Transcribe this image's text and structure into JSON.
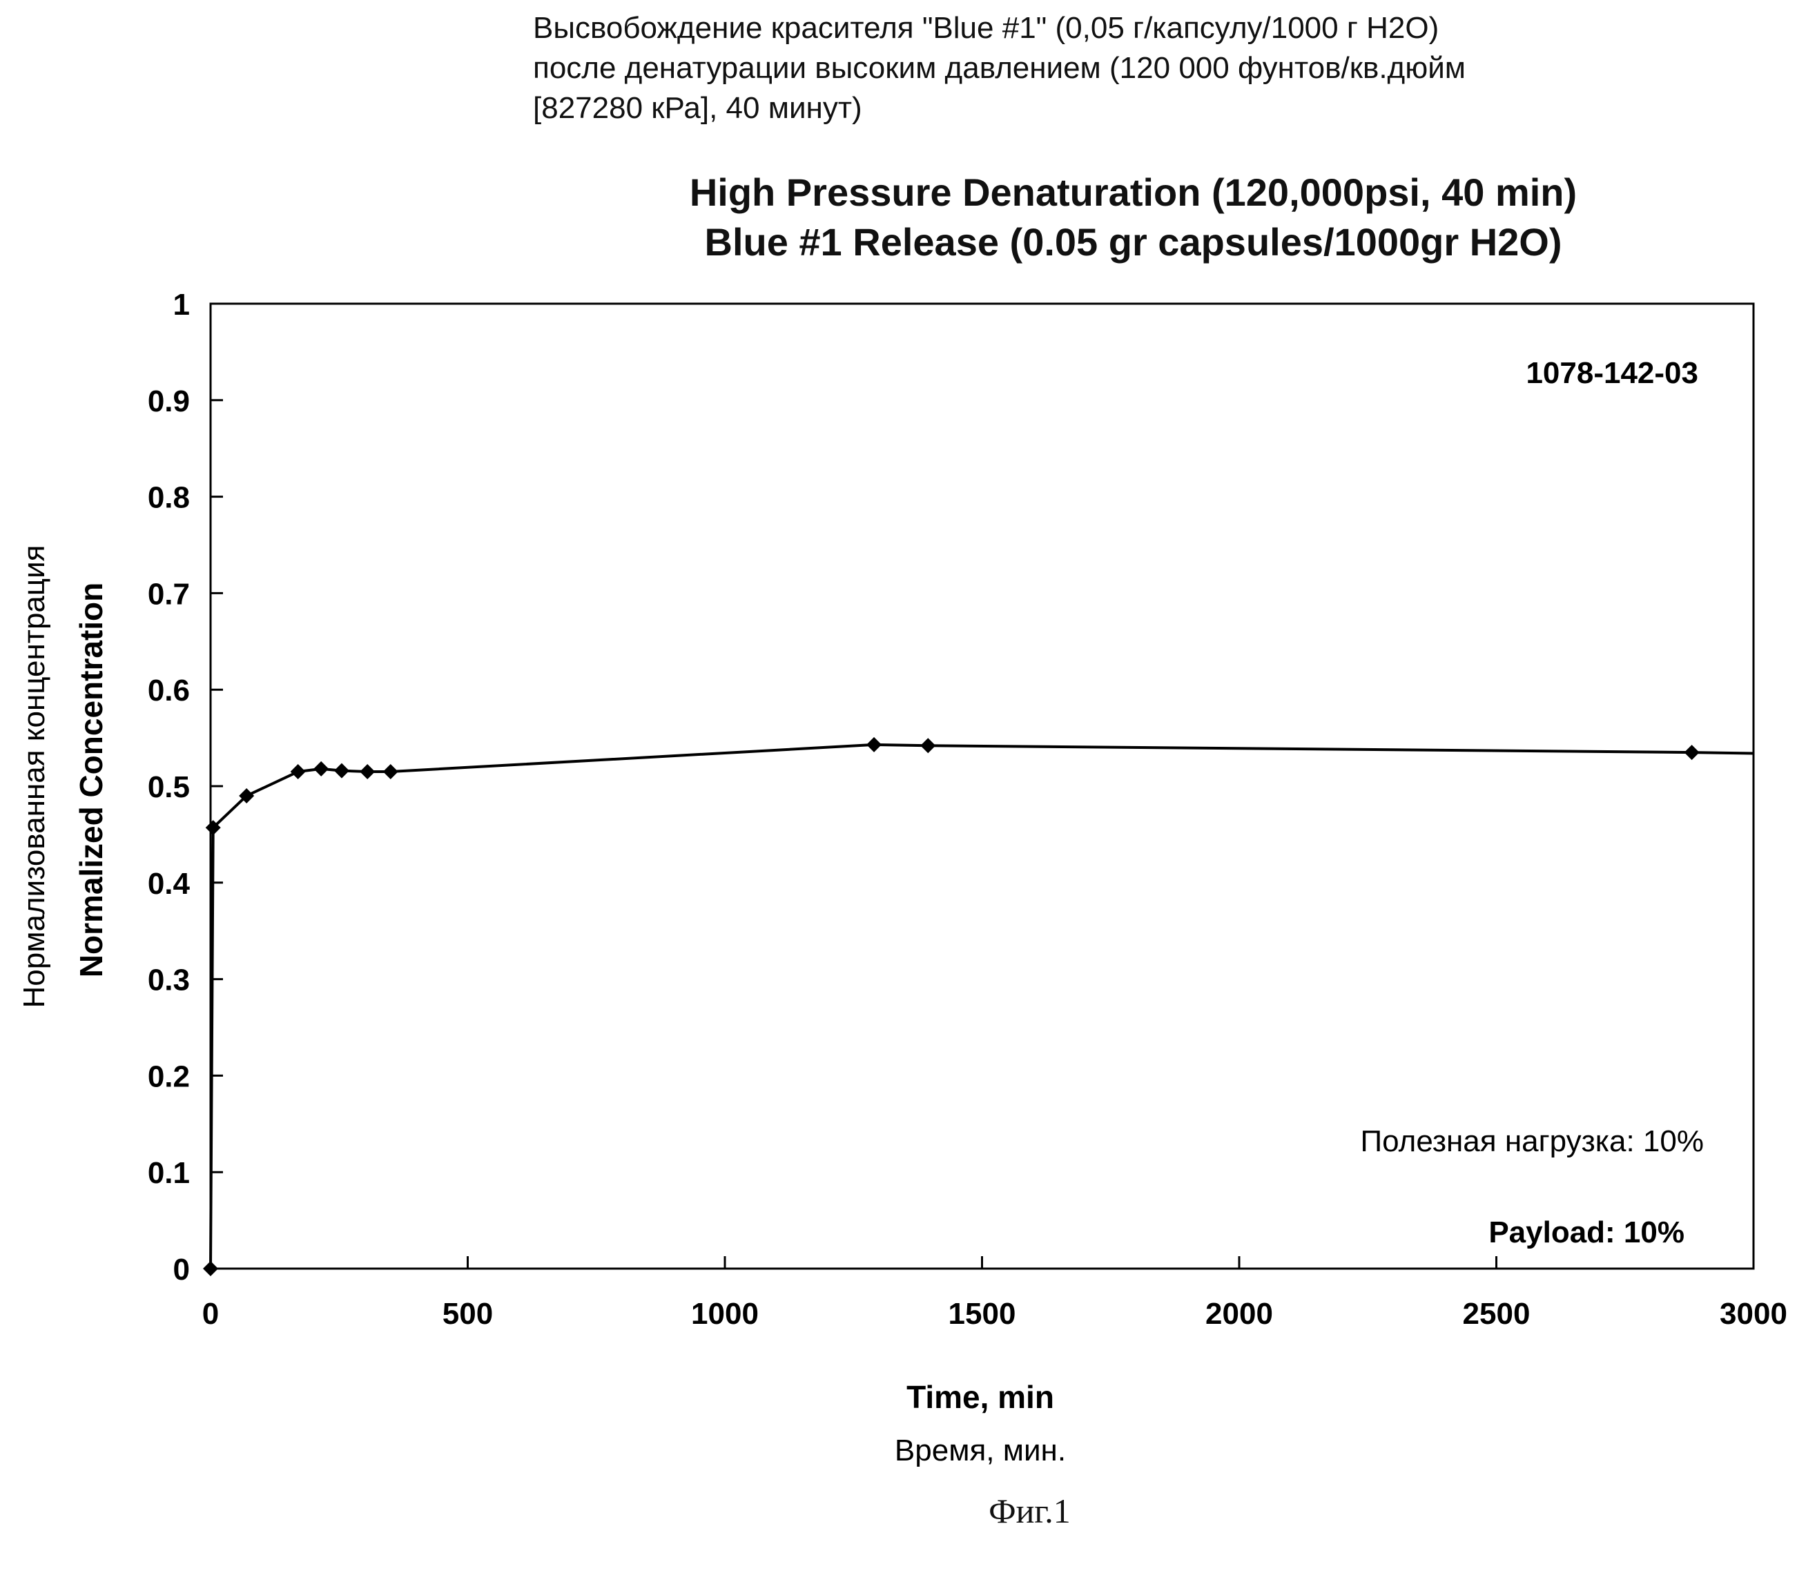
{
  "caption_ru": [
    "Высвобождение красителя \"Blue #1\" (0,05 г/капсулу/1000 г H2O)",
    "после денатурации высоким давлением (120 000 фунтов/кв.дюйм",
    "[827280 кРа], 40 минут)"
  ],
  "figure_label": "Фиг.1",
  "chart_data": {
    "type": "line",
    "title": [
      "High Pressure Denaturation (120,000psi, 40 min)",
      "Blue #1 Release (0.05 gr capsules/1000gr H2O)"
    ],
    "xlabel": "Time, min",
    "xlabel_ru": "Время, мин.",
    "ylabel": "Normalized Concentration",
    "ylabel_ru": "Нормализованная концентрация",
    "xlim": [
      0,
      3000
    ],
    "ylim": [
      0,
      1
    ],
    "x_ticks": [
      "0",
      "500",
      "1000",
      "1500",
      "2000",
      "2500",
      "3000"
    ],
    "y_ticks": [
      "0",
      "0.1",
      "0.2",
      "0.3",
      "0.4",
      "0.5",
      "0.6",
      "0.7",
      "0.8",
      "0.9",
      "1"
    ],
    "grid": false,
    "annotations": {
      "sample_id": "1078-142-03",
      "payload_ru": "Полезная нагрузка: 10%",
      "payload_en": "Payload: 10%"
    },
    "series": [
      {
        "x": [
          0,
          5,
          70,
          170,
          215,
          255,
          305,
          350,
          1290,
          1395,
          2880,
          3000
        ],
        "y": [
          0,
          0.457,
          0.49,
          0.515,
          0.518,
          0.516,
          0.515,
          0.515,
          0.543,
          0.542,
          0.535,
          0.534
        ],
        "marker": [
          true,
          true,
          true,
          true,
          true,
          true,
          true,
          true,
          true,
          true,
          true,
          false
        ]
      }
    ],
    "colors": {
      "line": "#000000",
      "marker": "#000000"
    }
  }
}
